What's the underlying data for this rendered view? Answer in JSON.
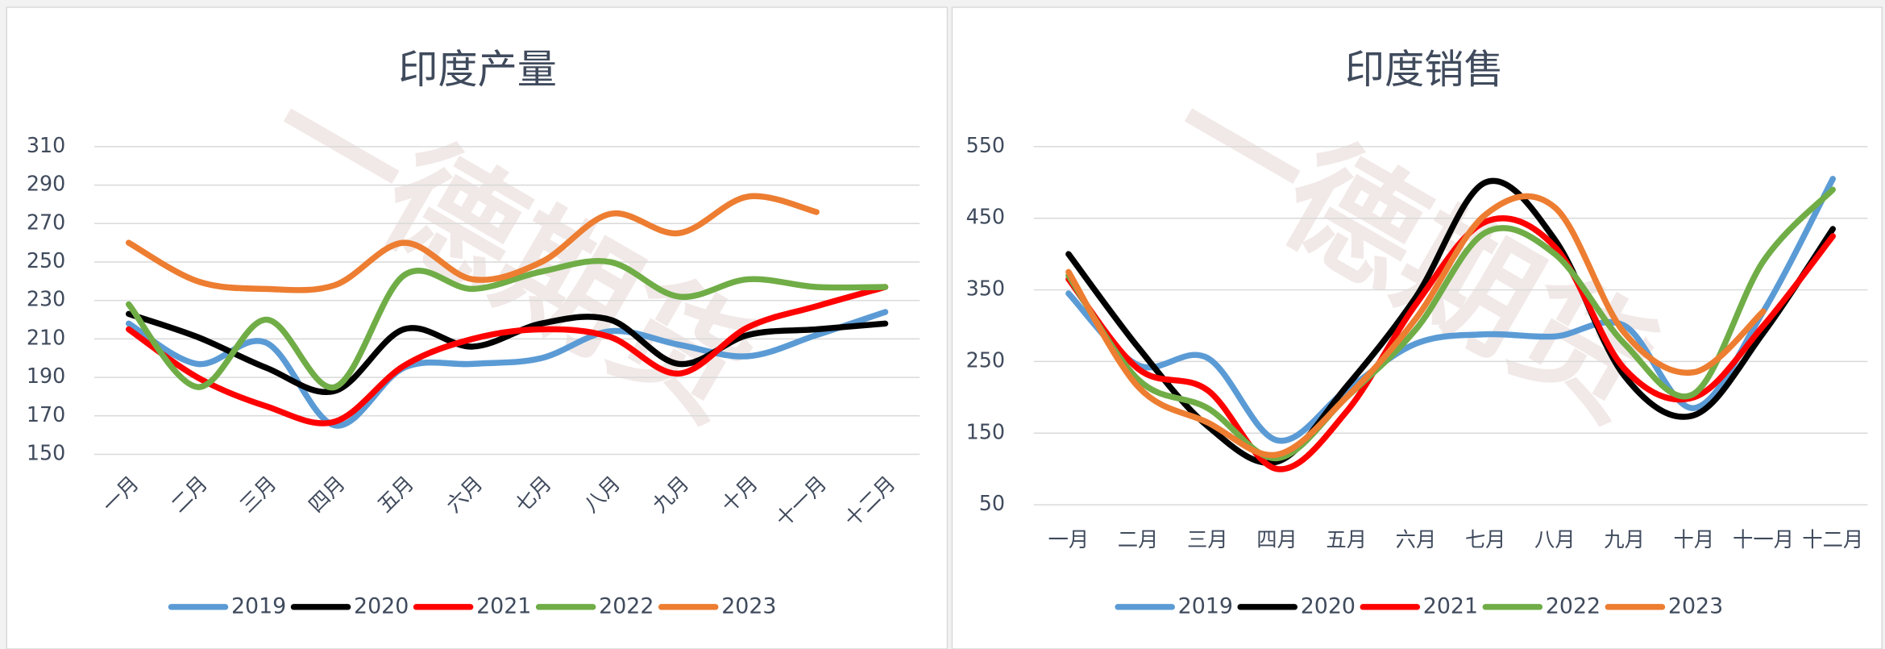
{
  "chart_data": [
    {
      "type": "line",
      "title": "印度产量",
      "watermark": "一德期货",
      "categories": [
        "一月",
        "二月",
        "三月",
        "四月",
        "五月",
        "六月",
        "七月",
        "八月",
        "九月",
        "十月",
        "十一月",
        "十二月"
      ],
      "ylim": [
        150,
        310
      ],
      "yticks": [
        150,
        170,
        190,
        210,
        230,
        250,
        270,
        290,
        310
      ],
      "grid": true,
      "x_label_rotation": -45,
      "legend": "bottom",
      "series": [
        {
          "name": "2019",
          "color": "#5b9bd5",
          "values": [
            218,
            197,
            208,
            165,
            195,
            197,
            200,
            214,
            207,
            201,
            212,
            224
          ]
        },
        {
          "name": "2020",
          "color": "#000000",
          "values": [
            223,
            211,
            195,
            183,
            215,
            206,
            218,
            220,
            197,
            212,
            215,
            218
          ]
        },
        {
          "name": "2021",
          "color": "#ff0000",
          "values": [
            215,
            190,
            175,
            167,
            196,
            210,
            215,
            211,
            192,
            216,
            227,
            237
          ]
        },
        {
          "name": "2022",
          "color": "#70ad47",
          "values": [
            228,
            185,
            220,
            185,
            243,
            236,
            245,
            250,
            232,
            241,
            237,
            237
          ]
        },
        {
          "name": "2023",
          "color": "#ed7d31",
          "values": [
            260,
            240,
            236,
            238,
            260,
            241,
            250,
            275,
            265,
            284,
            276,
            null
          ]
        }
      ]
    },
    {
      "type": "line",
      "title": "印度销售",
      "watermark": "一德期货",
      "categories": [
        "一月",
        "二月",
        "三月",
        "四月",
        "五月",
        "六月",
        "七月",
        "八月",
        "九月",
        "十月",
        "十一月",
        "十二月"
      ],
      "ylim": [
        50,
        550
      ],
      "yticks": [
        50,
        150,
        250,
        350,
        450,
        550
      ],
      "grid": true,
      "x_label_rotation": 0,
      "legend": "bottom",
      "series": [
        {
          "name": "2019",
          "color": "#5b9bd5",
          "values": [
            345,
            245,
            255,
            140,
            210,
            275,
            288,
            285,
            300,
            185,
            320,
            505
          ]
        },
        {
          "name": "2020",
          "color": "#000000",
          "values": [
            400,
            270,
            160,
            110,
            215,
            340,
            500,
            420,
            230,
            175,
            290,
            435
          ]
        },
        {
          "name": "2021",
          "color": "#ff0000",
          "values": [
            365,
            240,
            210,
            100,
            180,
            330,
            445,
            410,
            240,
            200,
            300,
            425
          ]
        },
        {
          "name": "2022",
          "color": "#70ad47",
          "values": [
            370,
            225,
            185,
            115,
            200,
            295,
            430,
            400,
            275,
            205,
            390,
            490
          ]
        },
        {
          "name": "2023",
          "color": "#ed7d31",
          "values": [
            375,
            215,
            165,
            120,
            200,
            310,
            455,
            465,
            290,
            235,
            320,
            null
          ]
        }
      ]
    }
  ]
}
